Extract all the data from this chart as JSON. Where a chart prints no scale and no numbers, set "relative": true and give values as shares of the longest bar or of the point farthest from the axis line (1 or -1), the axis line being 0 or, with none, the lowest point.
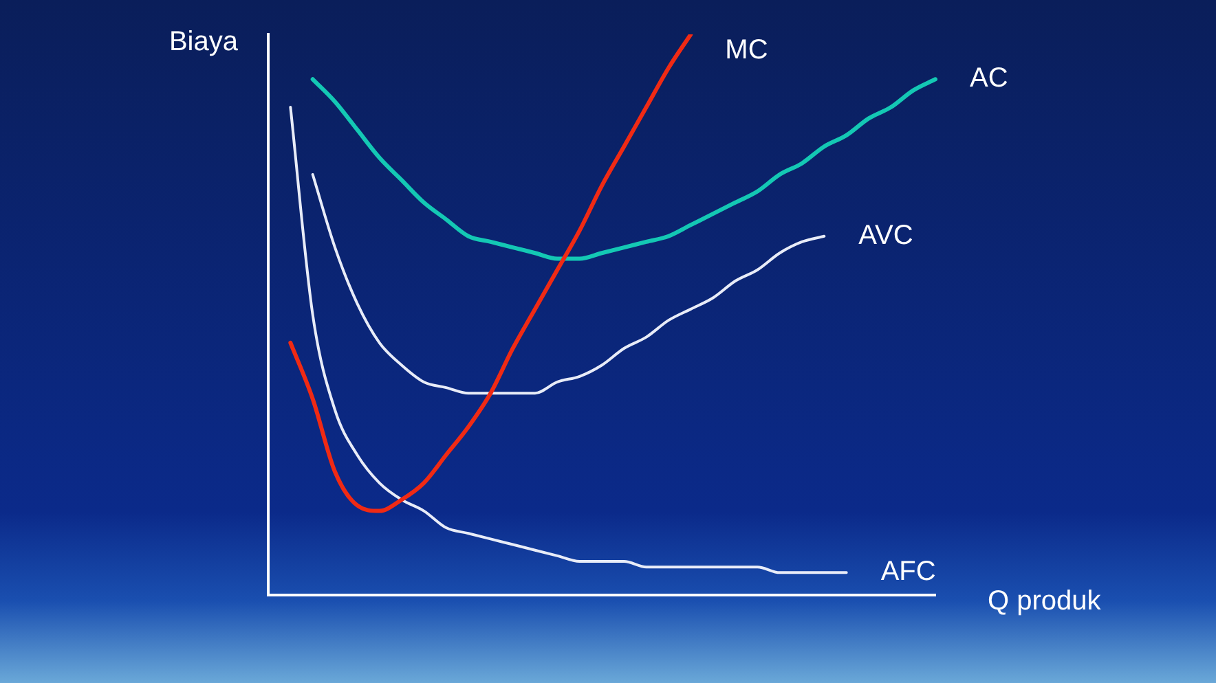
{
  "chart_data": {
    "type": "line",
    "relative": true,
    "ylabel": "Biaya",
    "xlabel": "Q produk",
    "legend": false,
    "grid": false,
    "marker": "none",
    "line_style": "solid",
    "categories": [
      null,
      null,
      null,
      null,
      null,
      null,
      null,
      null,
      null,
      null,
      null,
      null,
      null,
      null,
      null,
      null,
      null,
      null,
      null,
      null,
      null,
      null,
      null,
      null,
      null,
      null,
      null,
      null,
      null,
      null,
      null
    ],
    "series": [
      {
        "name": "MC",
        "color": "#f02a14",
        "values": [
          null,
          0.45,
          0.35,
          0.22,
          0.16,
          0.15,
          0.17,
          0.2,
          0.25,
          0.3,
          0.36,
          0.44,
          0.51,
          0.58,
          0.65,
          0.73,
          0.8,
          0.87,
          0.94,
          1.0,
          null,
          null,
          null,
          null,
          null,
          null,
          null,
          null,
          null,
          null,
          null
        ]
      },
      {
        "name": "AC",
        "color": "#14c8b4",
        "values": [
          null,
          null,
          0.92,
          0.88,
          0.83,
          0.78,
          0.74,
          0.7,
          0.67,
          0.64,
          0.63,
          0.62,
          0.61,
          0.6,
          0.6,
          0.61,
          0.62,
          0.63,
          0.64,
          0.66,
          0.68,
          0.7,
          0.72,
          0.75,
          0.77,
          0.8,
          0.82,
          0.85,
          0.87,
          0.9,
          0.92
        ]
      },
      {
        "name": "AVC",
        "color": "#e8ecf8",
        "values": [
          null,
          null,
          0.75,
          0.62,
          0.52,
          0.45,
          0.41,
          0.38,
          0.37,
          0.36,
          0.36,
          0.36,
          0.36,
          0.38,
          0.39,
          0.41,
          0.44,
          0.46,
          0.49,
          0.51,
          0.53,
          0.56,
          0.58,
          0.61,
          0.63,
          0.64,
          null,
          null,
          null,
          null,
          null
        ]
      },
      {
        "name": "AFC",
        "color": "#e8ecf8",
        "values": [
          null,
          0.87,
          0.5,
          0.33,
          0.25,
          0.2,
          0.17,
          0.15,
          0.12,
          0.11,
          0.1,
          0.09,
          0.08,
          0.07,
          0.06,
          0.06,
          0.06,
          0.05,
          0.05,
          0.05,
          0.05,
          0.05,
          0.05,
          0.04,
          0.04,
          0.04,
          0.04,
          null,
          null,
          null,
          null
        ]
      }
    ]
  }
}
